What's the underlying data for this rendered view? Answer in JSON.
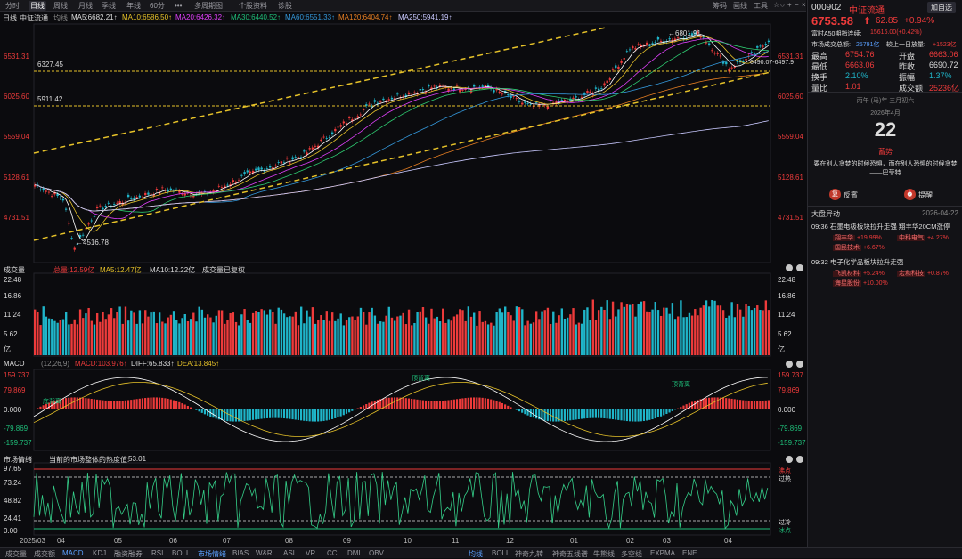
{
  "topbar": {
    "tabs": [
      "分时",
      "日线",
      "周线",
      "月线",
      "季线",
      "年线",
      "60分",
      "•••",
      "多周期图",
      "个股资料",
      "诊股"
    ],
    "active": 1,
    "right": [
      "筹码",
      "画线",
      "工具"
    ]
  },
  "info": {
    "period": "日线",
    "name": "中证流通",
    "ma_label": "均线",
    "ma5": "MA5:6682.21↑",
    "ma10": "MA10:6586.50↑",
    "ma20": "MA20:6426.32↑",
    "ma30": "MA30:6440.52↑",
    "ma60": "MA60:6551.33↑",
    "ma120": "MA120:6404.74↑",
    "ma250": "MA250:5941.19↑"
  },
  "price_panel": {
    "ticks": [
      "6531.31",
      "6025.60",
      "5559.04",
      "5128.61",
      "4731.51"
    ],
    "hi_label": "←6801.91",
    "lo_label": "←4516.78",
    "right_label": "6490.07-6497.9",
    "line1": "6327.45",
    "line2": "5911.42"
  },
  "volume_panel": {
    "title": "成交量",
    "total": "总量:12.59亿",
    "ma5": "MA5:12.47亿",
    "ma10": "MA10:12.22亿",
    "note": "成交量已复权",
    "ticks": [
      "22.48",
      "16.86",
      "11.24",
      "5.62",
      "亿"
    ]
  },
  "macd_panel": {
    "title": "MACD",
    "params": "(12,26,9)",
    "macd": "MACD:103.976↑",
    "diff": "DIFF:65.833↑",
    "dea": "DEA:13.845↑",
    "ticks": [
      "159.737",
      "79.869",
      "0.000",
      "-79.869",
      "-159.737"
    ],
    "div1": "顶背离",
    "div2": "顶背离",
    "div3": "底背离"
  },
  "mood_panel": {
    "title": "市场情绪",
    "label": "当前的市场整体的热度值:",
    "value": "53.01",
    "ticks": [
      "97.65",
      "73.24",
      "48.82",
      "24.41",
      "0.00"
    ],
    "hot": "沸点",
    "overheat": "过热",
    "overcool": "过冷",
    "freeze": "冰点"
  },
  "xaxis": [
    "2025/03",
    "04",
    "05",
    "06",
    "07",
    "08",
    "09",
    "10",
    "11",
    "12",
    "01",
    "02",
    "03",
    "04"
  ],
  "bottombar": [
    "成交量",
    "成交额",
    "MACD",
    "KDJ",
    "融资融券",
    "RSI",
    "BOLL",
    "市场情绪",
    "BIAS",
    "W&R",
    "ASI",
    "VR",
    "CCI",
    "DMI",
    "OBV",
    "均线",
    "BOLL",
    "神奇九转",
    "神奇五线谱",
    "牛熊线",
    "多空线",
    "EXPMA",
    "ENE"
  ],
  "side": {
    "code": "000902",
    "name": "中证流通",
    "add": "加自选",
    "price": "6753.58",
    "change": "62.85",
    "pct": "+0.94%",
    "futures_label": "富时A50期指连续:",
    "futures_val": "15616.00(+0.42%)",
    "turnover_label": "市场成交总额:",
    "turnover_val": "25791亿",
    "diff_label": "较上一日放量:",
    "diff_val": "+1523亿",
    "stats": [
      [
        "最高",
        "6754.76",
        "开盘",
        "6663.06"
      ],
      [
        "最低",
        "6663.06",
        "昨收",
        "6690.72"
      ],
      [
        "换手",
        "2.10%",
        "振幅",
        "1.37%"
      ],
      [
        "量比",
        "1.01",
        "成交额",
        "25236亿"
      ]
    ],
    "lunar": "丙午 (马)年 三月初六",
    "month": "2026年4月",
    "day": "22",
    "yi": "蓄势",
    "quote": "要在别人贪婪的时候恐惧，而在别人恐惧的时候贪婪——巴菲特",
    "btn1": "反賓",
    "btn2": "提醒",
    "news_title": "大盘异动",
    "news_date": "2026-04-22",
    "news": [
      {
        "time": "09:36",
        "text": "石墨电极板块拉升走强 翔丰华20CM涨停",
        "stocks": [
          [
            "翔丰华",
            "+19.99%"
          ],
          [
            "中科电气",
            "+4.27%"
          ],
          [
            "国民技术",
            "+6.67%"
          ]
        ]
      },
      {
        "time": "09:32",
        "text": "电子化学品板块拉升走强",
        "stocks": [
          [
            "飞凯材料",
            "+5.24%"
          ],
          [
            "宏和科技",
            "+0.87%"
          ],
          [
            "海星股份",
            "+10.00%"
          ]
        ]
      }
    ]
  },
  "colors": {
    "up": "#ee3b3b",
    "down": "#1fb5c9",
    "ma5": "#ffffff",
    "ma10": "#e6c229",
    "ma20": "#e040fb",
    "ma30": "#2ecc71",
    "ma60": "#3498db",
    "ma120": "#e67e22",
    "ma250": "#c9c9ff"
  }
}
